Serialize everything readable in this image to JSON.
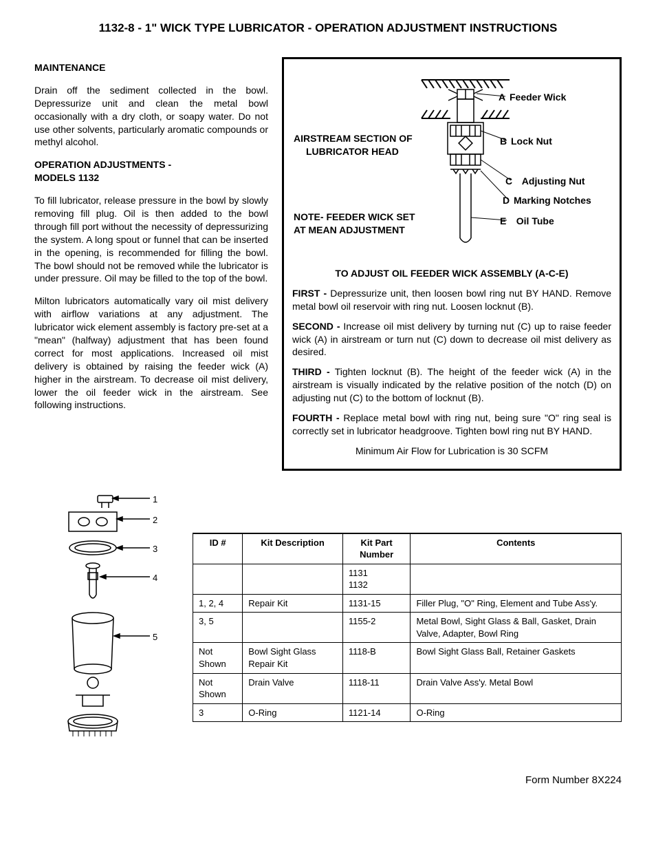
{
  "title": "1132-8 - 1\" WICK TYPE LUBRICATOR - OPERATION ADJUSTMENT INSTRUCTIONS",
  "left": {
    "maint_head": "MAINTENANCE",
    "maint_body": "Drain off the sediment collected in the bowl. Depressurize unit and clean the metal bowl occasionally with a dry cloth, or soapy water. Do not use other solvents, particularly aromatic compounds or methyl alcohol.",
    "opadj_head1": "OPERATION ADJUSTMENTS -",
    "opadj_head2": "MODELS 1132",
    "opadj_p1": "To fill lubricator, release pressure in the bowl by slowly removing fill plug. Oil is then added to the bowl through fill port without the necessity of depressurizing the system. A long spout or funnel that can be inserted in the opening, is recommended for filling the bowl. The bowl should not be removed while the lubricator is under pressure. Oil may be filled to the top of the bowl.",
    "opadj_p2": "Milton lubricators automatically vary oil mist delivery with airflow variations at any adjustment. The lubricator wick element assembly is factory pre-set at a \"mean\" (halfway) adjustment that has been found correct for most applications. Increased oil mist delivery is obtained by raising the feeder wick (A) higher in the airstream. To decrease oil mist delivery, lower the oil feeder wick in the airstream. See following instructions."
  },
  "diagram": {
    "airstream1": "AIRSTREAM SECTION OF",
    "airstream2": "LUBRICATOR HEAD",
    "note1": "NOTE- FEEDER WICK SET",
    "note2": "AT MEAN ADJUSTMENT",
    "labels": {
      "A": "Feeder Wick",
      "B": "Lock Nut",
      "C": "Adjusting Nut",
      "D": "Marking Notches",
      "E": "Oil Tube"
    },
    "adj_title": "TO ADJUST OIL FEEDER WICK ASSEMBLY (A-C-E)",
    "first_b": "FIRST -",
    "first": " Depressurize unit, then loosen bowl ring nut BY HAND. Remove metal bowl oil reservoir with ring nut. Loosen locknut (B).",
    "second_b": "SECOND -",
    "second": " Increase oil mist delivery by turning nut (C) up to raise feeder wick (A) in airstream or turn nut (C) down to decrease oil mist delivery as desired.",
    "third_b": "THIRD -",
    "third": " Tighten locknut (B). The height of the feeder wick (A) in the airstream is visually indicated by the relative position of the notch (D) on adjusting nut (C) to the bottom of locknut (B).",
    "fourth_b": "FOURTH -",
    "fourth": " Replace metal bowl with ring nut, being sure \"O\" ring seal is correctly set in lubricator headgroove. Tighten bowl ring nut BY HAND.",
    "minflow": "Minimum Air Flow for Lubrication is 30 SCFM"
  },
  "parts_table": {
    "headers": [
      "ID #",
      "Kit Description",
      "Kit Part Number",
      "Contents"
    ],
    "rows": [
      [
        "",
        "",
        "1131\n1132",
        ""
      ],
      [
        "1, 2, 4",
        "Repair Kit",
        "1131-15",
        "Filler Plug, \"O\" Ring, Element and Tube Ass'y."
      ],
      [
        "3, 5",
        "",
        "1155-2",
        "Metal Bowl, Sight Glass & Ball, Gasket, Drain Valve, Adapter, Bowl Ring"
      ],
      [
        "Not Shown",
        "Bowl Sight Glass Repair Kit",
        "1118-B",
        "Bowl Sight Glass Ball, Retainer Gaskets"
      ],
      [
        "Not Shown",
        "Drain Valve",
        "1118-11",
        "Drain Valve Ass'y. Metal Bowl"
      ],
      [
        "3",
        "O-Ring",
        "1121-14",
        "O-Ring"
      ]
    ]
  },
  "exploded_labels": [
    "1",
    "2",
    "3",
    "4",
    "5"
  ],
  "form_number": "Form Number 8X224"
}
